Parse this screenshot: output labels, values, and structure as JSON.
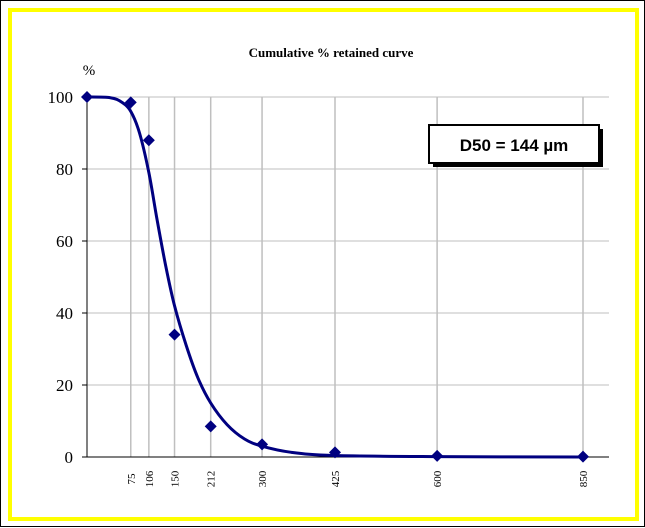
{
  "chart_data": {
    "type": "scatter",
    "title": "Cumulative % retained curve",
    "ylabel": "%",
    "xlabel": "",
    "ylim": [
      0,
      100
    ],
    "yticks": [
      0,
      20,
      40,
      60,
      80,
      100
    ],
    "x_ticks": [
      "75",
      "106",
      "150",
      "212",
      "300",
      "425",
      "600",
      "850"
    ],
    "series": [
      {
        "x": [
          0,
          75,
          106,
          150,
          212,
          300,
          425,
          600,
          850
        ],
        "y": [
          100,
          98.5,
          88,
          34,
          8.5,
          3.5,
          1.3,
          0.3,
          0.1
        ],
        "marker": "diamond",
        "color": "#000080"
      }
    ],
    "fit_curve": {
      "x": [
        0,
        40,
        60,
        75,
        90,
        106,
        120,
        135,
        150,
        170,
        190,
        212,
        240,
        270,
        300,
        350,
        425,
        600,
        850
      ],
      "y": [
        100,
        99.8,
        98.5,
        96,
        90,
        79,
        66,
        53,
        42,
        31,
        22,
        15,
        9,
        5,
        3,
        1.3,
        0.4,
        0.1,
        0
      ]
    },
    "annotation": "D50 =  144  µm",
    "grid": "vertical lines at x ticks, horizontal lines at y ticks",
    "colors": {
      "frame": "#FFFF00",
      "series": "#000080"
    }
  }
}
